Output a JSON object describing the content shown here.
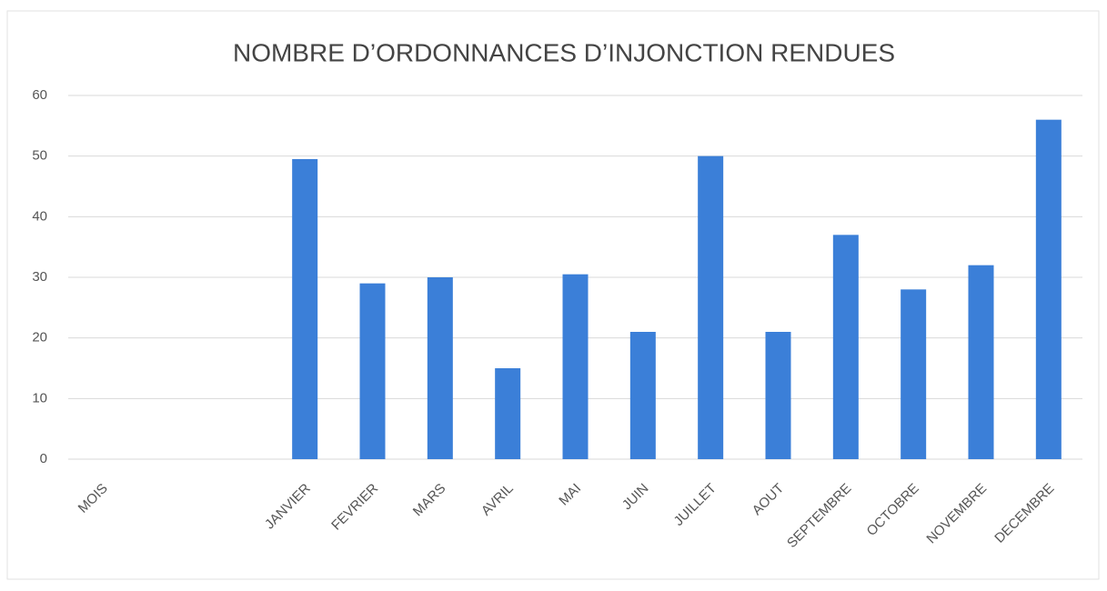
{
  "chart_data": {
    "type": "bar",
    "title": "NOMBRE D’ORDONNANCES D’INJONCTION RENDUES",
    "categories": [
      "MOIS",
      null,
      null,
      "JANVIER",
      "FEVRIER",
      "MARS",
      "AVRIL",
      "MAI",
      "JUIN",
      "JUILLET",
      "AOUT",
      "SEPTEMBRE",
      "OCTOBRE",
      "NOVEMBRE",
      "DECEMBRE"
    ],
    "values": [
      null,
      null,
      null,
      49.5,
      29,
      30,
      15,
      30.5,
      21,
      50,
      21,
      37,
      28,
      32,
      56
    ],
    "color": "#3b7fd8",
    "ylim": [
      0,
      60
    ],
    "yticks": [
      0,
      10,
      20,
      30,
      40,
      50,
      60
    ],
    "grid": true
  }
}
